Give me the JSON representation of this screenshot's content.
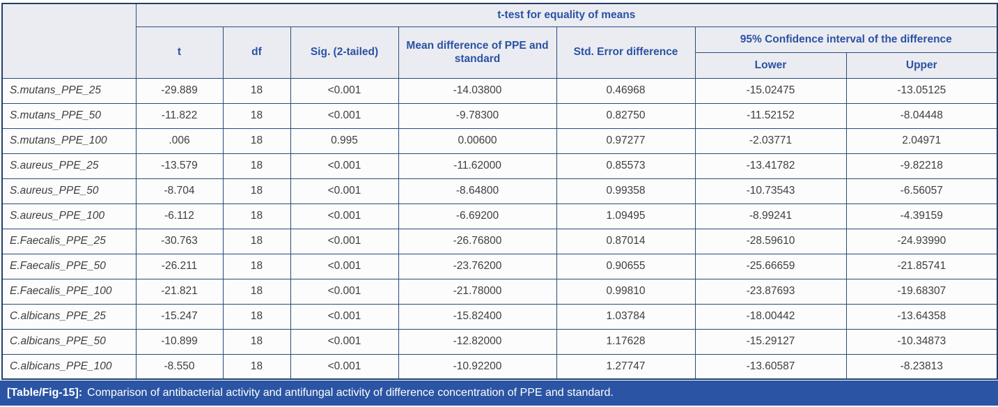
{
  "table": {
    "header": {
      "group_title": "t-test for equality of means",
      "ci_group_title": "95% Confidence interval of the difference",
      "columns": [
        "t",
        "df",
        "Sig. (2-tailed)",
        "Mean difference of PPE and standard",
        "Std. Error difference",
        "Lower",
        "Upper"
      ]
    },
    "rows": [
      {
        "label": "S.mutans_PPE_25",
        "cells": [
          "-29.889",
          "18",
          "<0.001",
          "-14.03800",
          "0.46968",
          "-15.02475",
          "-13.05125"
        ]
      },
      {
        "label": "S.mutans_PPE_50",
        "cells": [
          "-11.822",
          "18",
          "<0.001",
          "-9.78300",
          "0.82750",
          "-11.52152",
          "-8.04448"
        ]
      },
      {
        "label": "S.mutans_PPE_100",
        "cells": [
          ".006",
          "18",
          "0.995",
          "0.00600",
          "0.97277",
          "-2.03771",
          "2.04971"
        ]
      },
      {
        "label": "S.aureus_PPE_25",
        "cells": [
          "-13.579",
          "18",
          "<0.001",
          "-11.62000",
          "0.85573",
          "-13.41782",
          "-9.82218"
        ]
      },
      {
        "label": "S.aureus_PPE_50",
        "cells": [
          "-8.704",
          "18",
          "<0.001",
          "-8.64800",
          "0.99358",
          "-10.73543",
          "-6.56057"
        ]
      },
      {
        "label": "S.aureus_PPE_100",
        "cells": [
          "-6.112",
          "18",
          "<0.001",
          "-6.69200",
          "1.09495",
          "-8.99241",
          "-4.39159"
        ]
      },
      {
        "label": "E.Faecalis_PPE_25",
        "cells": [
          "-30.763",
          "18",
          "<0.001",
          "-26.76800",
          "0.87014",
          "-28.59610",
          "-24.93990"
        ]
      },
      {
        "label": "E.Faecalis_PPE_50",
        "cells": [
          "-26.211",
          "18",
          "<0.001",
          "-23.76200",
          "0.90655",
          "-25.66659",
          "-21.85741"
        ]
      },
      {
        "label": "E.Faecalis_PPE_100",
        "cells": [
          "-21.821",
          "18",
          "<0.001",
          "-21.78000",
          "0.99810",
          "-23.87693",
          "-19.68307"
        ]
      },
      {
        "label": "C.albicans_PPE_25",
        "cells": [
          "-15.247",
          "18",
          "<0.001",
          "-15.82400",
          "1.03784",
          "-18.00442",
          "-13.64358"
        ]
      },
      {
        "label": "C.albicans_PPE_50",
        "cells": [
          "-10.899",
          "18",
          "<0.001",
          "-12.82000",
          "1.17628",
          "-15.29127",
          "-10.34873"
        ]
      },
      {
        "label": "C.albicans_PPE_100",
        "cells": [
          "-8.550",
          "18",
          "<0.001",
          "-10.92200",
          "1.27747",
          "-13.60587",
          "-8.23813"
        ]
      }
    ]
  },
  "caption": {
    "tag": "[Table/Fig-15]:",
    "text": "Comparison of antibacterial activity and antifungal activity of difference concentration of PPE and standard."
  },
  "colors": {
    "header_text": "#2A52A2",
    "header_bg": "#EBECF2",
    "grid_border": "#2A4A78",
    "outer_border": "#223E66",
    "caption_bg": "#2B55A4",
    "caption_text": "#FFFFFF",
    "data_text": "#3E3E3E",
    "data_bg": "#FCFCFC"
  }
}
